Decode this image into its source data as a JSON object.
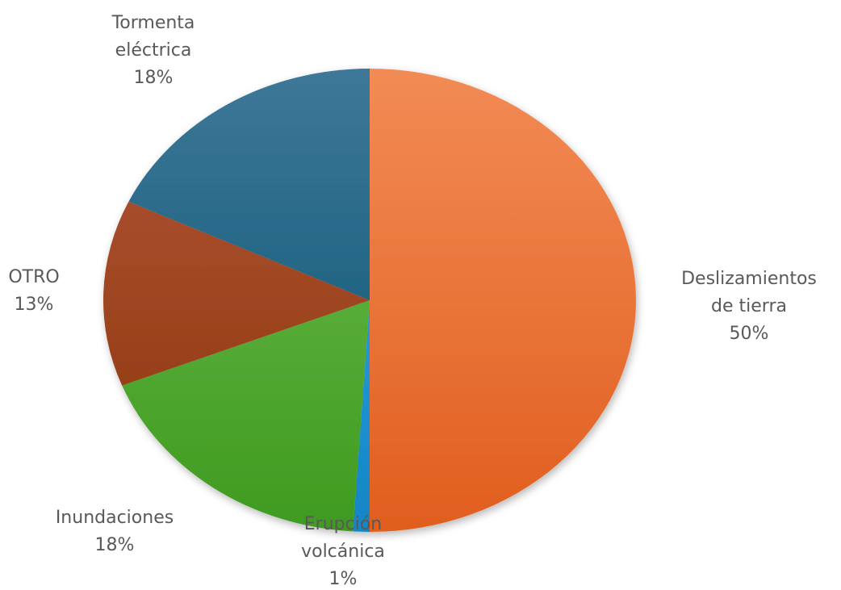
{
  "chart_data": {
    "type": "pie",
    "title": "",
    "slices": [
      {
        "label": "Deslizamientos de tierra",
        "label_lines": [
          "Deslizamientos",
          "de tierra"
        ],
        "value": 50,
        "value_text": "50%",
        "color": "#ED7D31",
        "color_light": "#F28B55",
        "color_dark": "#E05E1E"
      },
      {
        "label": "Erupción volcánica",
        "label_lines": [
          "Erupción",
          "volcánica"
        ],
        "value": 1,
        "value_text": "1%",
        "color": "#1E9ADB",
        "color_light": "#3CB0EA",
        "color_dark": "#1285C5"
      },
      {
        "label": "Inundaciones",
        "label_lines": [
          "Inundaciones"
        ],
        "value": 18,
        "value_text": "18%",
        "color": "#4EA72E",
        "color_light": "#6FBF52",
        "color_dark": "#3F9A1F"
      },
      {
        "label": "OTRO",
        "label_lines": [
          "OTRO"
        ],
        "value": 13,
        "value_text": "13%",
        "color": "#9E3C0E",
        "color_light": "#B2573A",
        "color_dark": "#8B3408"
      },
      {
        "label": "Tormenta eléctrica",
        "label_lines": [
          "Tormenta",
          "eléctrica"
        ],
        "value": 18,
        "value_text": "18%",
        "color": "#0E5A82",
        "color_light": "#3E7898",
        "color_dark": "#05506F"
      }
    ],
    "start_angle_deg": 0,
    "direction": "clockwise",
    "data_labels": "category and percentage, outside",
    "legend": "none"
  }
}
